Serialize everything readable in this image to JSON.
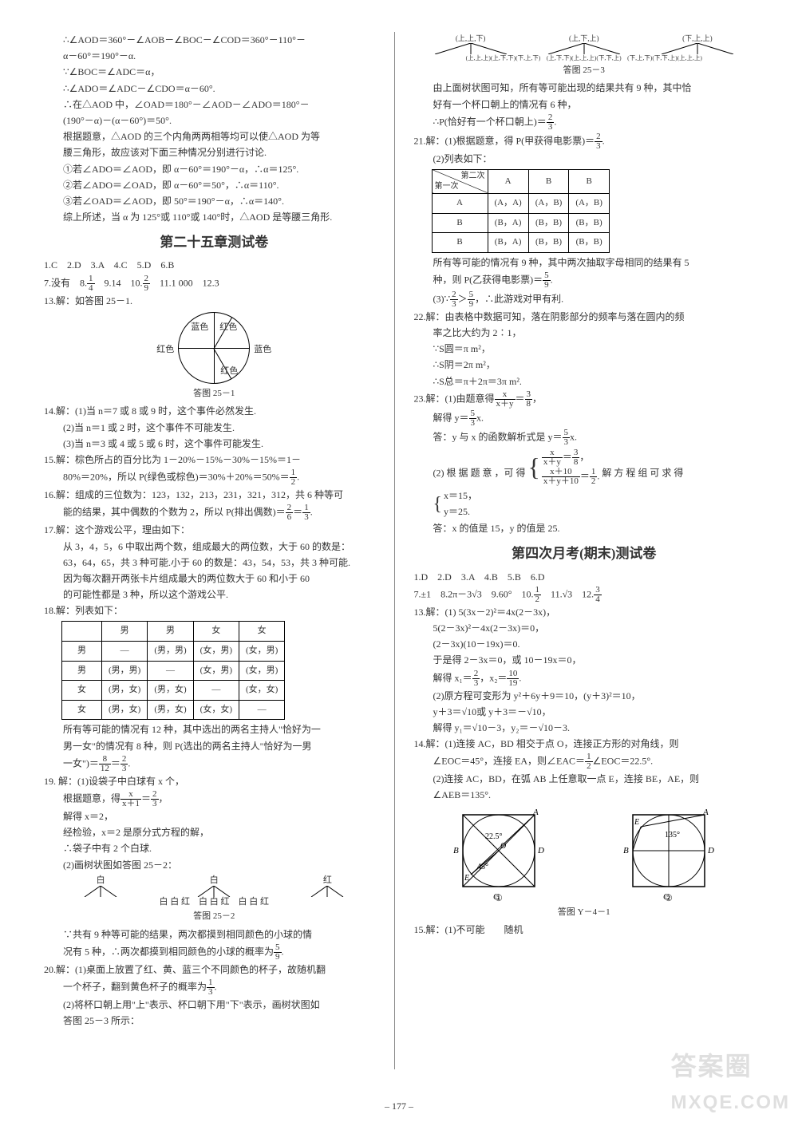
{
  "pageNumber": "– 177 –",
  "watermark_top": "答案圈",
  "watermark_bottom": "MXQE.COM",
  "left": {
    "aod1": "∴∠AOD＝360°－∠AOB－∠BOC－∠COD＝360°－110°－",
    "aod2": "α－60°＝190°－α.",
    "boc": "∵∠BOC＝∠ADC＝α，",
    "ado": "∴∠ADO＝∠ADC－∠CDO＝α－60°.",
    "oad1": "∴在△AOD 中，∠OAD＝180°－∠AOD－∠ADO＝180°－",
    "oad2": "(190°－α)－(α－60°)＝50°.",
    "root": "根据题意，△AOD 的三个内角两两相等均可以使△AOD 为等",
    "root2": "腰三角形，故应该对下面三种情况分别进行讨论.",
    "case1": "①若∠ADO＝∠AOD，即 α－60°＝190°－α，∴α＝125°.",
    "case2": "②若∠ADO＝∠OAD，即 α－60°＝50°，∴α＝110°.",
    "case3": "③若∠OAD＝∠AOD，即 50°＝190°－α，∴α＝140°.",
    "conclusion": "综上所述，当 α 为 125°或 110°或 140°时，△AOD 是等腰三角形.",
    "chapter25": "第二十五章测试卷",
    "mc": "1.C　2.D　3.A　4.C　5.D　6.B",
    "q7_12a": "7.没有　8.",
    "q7_12b": "　9.14　10.",
    "q7_12c": "　11.1 000　12.3",
    "q13": "13.解：如答图 25－1.",
    "pie_labels": {
      "tl": "蓝色",
      "tr": "红色",
      "l": "红色",
      "r": "蓝色",
      "br": "红色"
    },
    "fig25_1": "答图 25－1",
    "q14_1": "14.解：(1)当 n＝7 或 8 或 9 时，这个事件必然发生.",
    "q14_2": "(2)当 n＝1 或 2 时，这个事件不可能发生.",
    "q14_3": "(3)当 n＝3 或 4 或 5 或 6 时，这个事件可能发生.",
    "q15_1": "15.解：棕色所占的百分比为 1－20%－15%－30%－15%＝1－",
    "q15_2a": "80%＝20%，所以 P(绿色或棕色)＝30%＋20%＝50%＝",
    "q16_1": "16.解：组成的三位数为：123，132，213，231，321，312，共 6 种等可",
    "q16_2a": "能的结果，其中偶数的个数为 2，所以 P(排出偶数)＝",
    "q17_1": "17.解：这个游戏公平，理由如下：",
    "q17_2": "从 3，4，5，6 中取出两个数，组成最大的两位数，大于 60 的数是：",
    "q17_3": "63，64，65，共 3 种可能.小于 60 的数是：43，54，53，共 3 种可能.",
    "q17_4": "因为每次翻开两张卡片组成最大的两位数大于 60 和小于 60",
    "q17_5": "的可能性都是 3 种，所以这个游戏公平.",
    "q18_1": "18.解：列表如下：",
    "table18": {
      "headers": [
        "",
        "男",
        "男",
        "女",
        "女"
      ],
      "rows": [
        [
          "男",
          "—",
          "(男，男)",
          "(女，男)",
          "(女，男)"
        ],
        [
          "男",
          "(男，男)",
          "—",
          "(女，男)",
          "(女，男)"
        ],
        [
          "女",
          "(男，女)",
          "(男，女)",
          "—",
          "(女，女)"
        ],
        [
          "女",
          "(男，女)",
          "(男，女)",
          "(女，女)",
          "—"
        ]
      ]
    },
    "q18_2": "所有等可能的情况有 12 种，其中选出的两名主持人\"恰好为一",
    "q18_3": "男一女\"的情况有 8 种，则 P(选出的两名主持人\"恰好为一男",
    "q18_4a": "一女\")＝",
    "q19_1": "19. 解：(1)设袋子中白球有 x 个，",
    "q19_2a": "根据题意，得",
    "q19_3": "解得 x＝2，",
    "q19_4": "经检验，x＝2 是原分式方程的解，",
    "q19_5": "∴袋子中有 2 个白球.",
    "q19_6": "(2)画树状图如答图 25－2：",
    "tree19": {
      "top": [
        "白",
        "白",
        "红"
      ],
      "bottom": "白 白 红　白 白 红　白 白 红"
    },
    "fig25_2": "答图 25－2",
    "q19_7": "∵共有 9 种等可能的结果，两次都摸到相同颜色的小球的情",
    "q19_8a": "况有 5 种，∴两次都摸到相同颜色的小球的概率为",
    "q20_1": "20.解：(1)桌面上放置了红、黄、蓝三个不同颜色的杯子，故随机翻",
    "q20_2a": "一个杯子，翻到黄色杯子的概率为",
    "q20_3": "(2)将杯口朝上用\"上\"表示、杯口朝下用\"下\"表示，画树状图如",
    "q20_4": "答图 25－3 所示："
  },
  "right": {
    "tree20": {
      "top": "(上,上,下)　　　　　(上,下,上)　　　　　(下,上,上)",
      "bottom": "(上,上,上)(上,下,下)(下,上,下)　(上,下,下)(上,上,上)(下,下,上)　(下,上,下)(下,下,上)(上,上,上)"
    },
    "fig25_3": "答图 25－3",
    "q20_5": "由上面树状图可知，所有等可能出现的结果共有 9 种，其中恰",
    "q20_6": "好有一个杯口朝上的情况有 6 种，",
    "q20_7a": "∴P(恰好有一个杯口朝上)＝",
    "q21_1a": "21.解：(1)根据题意，得 P(甲获得电影票)＝",
    "q21_2": "(2)列表如下：",
    "table21": {
      "diag_tl": "第二次",
      "diag_br": "第一次",
      "headers": [
        "A",
        "B",
        "B"
      ],
      "rows": [
        [
          "A",
          "(A，A)",
          "(A，B)",
          "(A，B)"
        ],
        [
          "B",
          "(B，A)",
          "(B，B)",
          "(B，B)"
        ],
        [
          "B",
          "(B，A)",
          "(B，B)",
          "(B，B)"
        ]
      ]
    },
    "q21_3": "所有等可能的情况有 9 种，其中两次抽取字母相同的结果有 5",
    "q21_4a": "种，则 P(乙获得电影票)＝",
    "q21_5a": "(3)∵",
    "q21_5b": "，∴此游戏对甲有利.",
    "q22_1": "22.解：由表格中数据可知，落在阴影部分的频率与落在圆内的频",
    "q22_2": "率之比大约为 2∶1，",
    "q22_3": "∵S圆＝π m²，",
    "q22_4": "∴S阴＝2π m²，",
    "q22_5": "∴S总＝π＋2π＝3π m².",
    "q23_1a": "23.解：(1)由题意得",
    "q23_2a": "解得 y＝",
    "q23_3a": "答：y 与 x 的函数解析式是 y＝",
    "q23_4": "(2) 根 据 题 意 ，可 得",
    "q23_4b": "解 方 程 组 可 求 得",
    "q23_5": "答：x 的值是 15，y 的值是 25.",
    "chapterFinal": "第四次月考(期末)测试卷",
    "mc2": "1.D　2.D　3.A　4.B　5.B　6.D",
    "q7_12_2a": "7.±1　8.2π－3√3　9.60°　10.",
    "q7_12_2b": "　11.√3　12.",
    "q13f_1": "13.解：(1) 5(3x－2)²＝4x(2－3x)，",
    "q13f_2": "5(2－3x)²－4x(2－3x)＝0，",
    "q13f_3": "(2－3x)(10－19x)＝0.",
    "q13f_4": "于是得 2－3x＝0，或 10－19x＝0，",
    "q13f_5a": "解得 x₁＝",
    "q13f_5b": "，x₂＝",
    "q13f_6": "(2)原方程可变形为 y²＋6y＋9＝10，(y＋3)²＝10，",
    "q13f_7": "y＋3＝√10或 y＋3＝－√10，",
    "q13f_8": "解得 y₁＝√10－3，y₂＝－√10－3.",
    "q14f_1": "14.解：(1)连接 AC，BD 相交于点 O，连接正方形的对角线，则",
    "q14f_2a": "∠EOC＝45°，连接 EA，则∠EAC＝",
    "q14f_2b": "∠EOC＝22.5°.",
    "q14f_3": "(2)连接 AC，BD，在弧 AB 上任意取一点 E，连接 BE，AE，则",
    "q14f_4": "∠AEB＝135°.",
    "figY4_1": "答图 Y－4－1",
    "q15f": "15.解：(1)不可能　　随机"
  }
}
